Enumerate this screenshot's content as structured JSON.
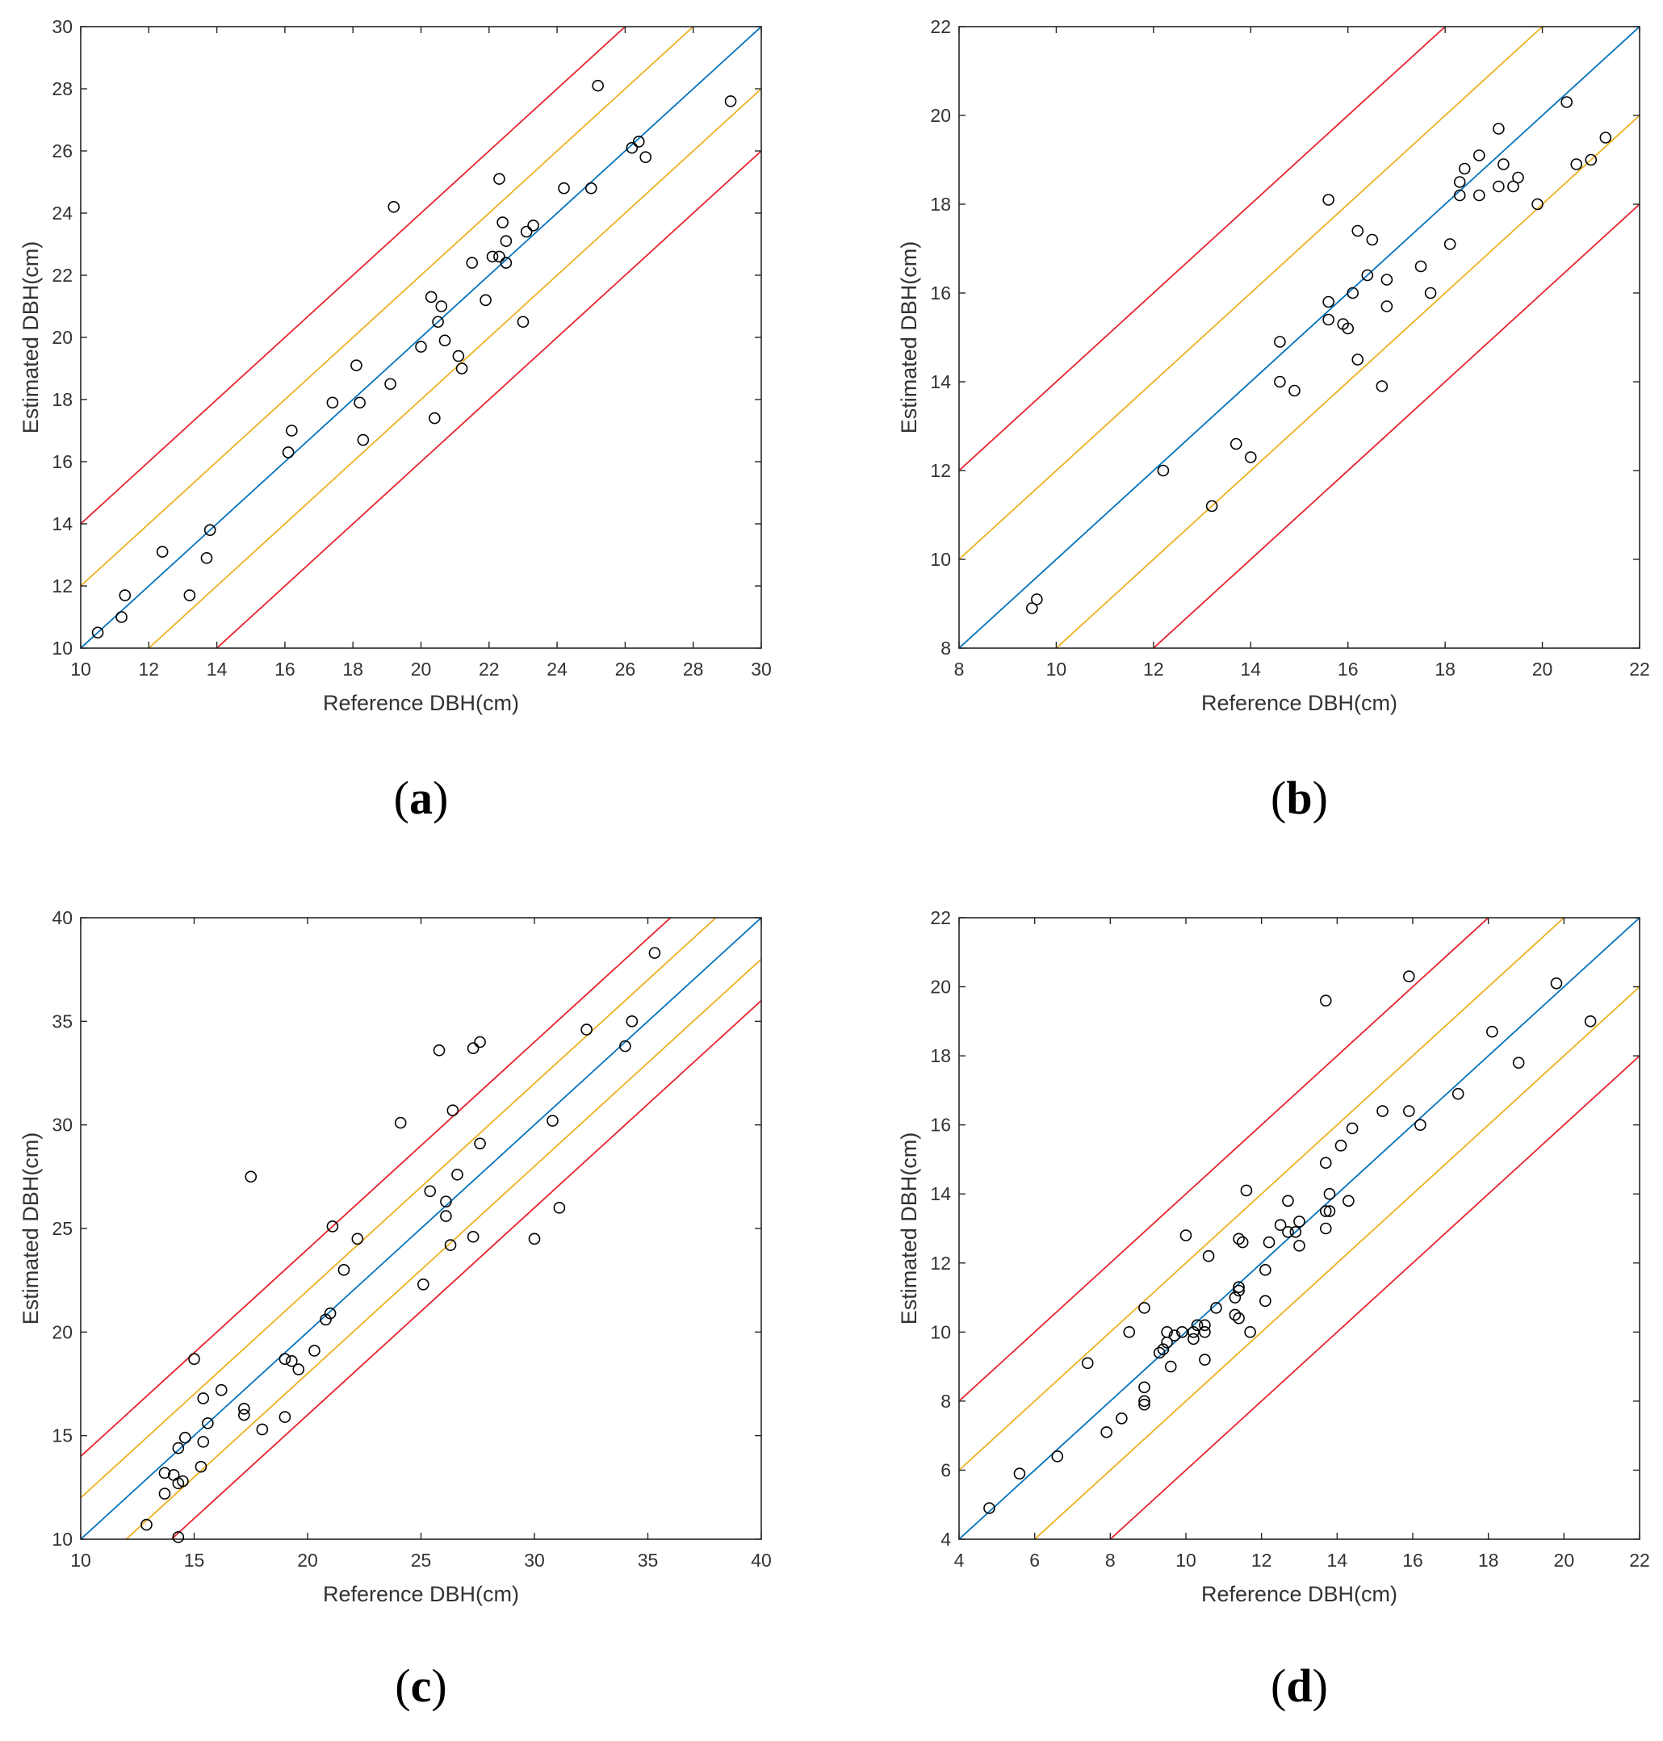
{
  "colors": {
    "identity": "#0072bd",
    "inner_band": "#edb120",
    "outer_band": "#e8222a",
    "marker": "#000000",
    "axes": "#262626"
  },
  "chart_data": [
    {
      "panel": "a",
      "panel_label": "a",
      "type": "scatter",
      "title": "",
      "xlabel": "Reference DBH(cm)",
      "ylabel": "Estimated DBH(cm)",
      "xlim": [
        10,
        30
      ],
      "ylim": [
        10,
        30
      ],
      "xticks": [
        10,
        12,
        14,
        16,
        18,
        20,
        22,
        24,
        26,
        28,
        30
      ],
      "yticks": [
        10,
        12,
        14,
        16,
        18,
        20,
        22,
        24,
        26,
        28,
        30
      ],
      "reference_lines": [
        {
          "name": "1:1",
          "offset": 0,
          "color": "identity"
        },
        {
          "name": "+2 cm",
          "offset": 2,
          "color": "inner_band"
        },
        {
          "name": "-2 cm",
          "offset": -2,
          "color": "inner_band"
        },
        {
          "name": "+4 cm",
          "offset": 4,
          "color": "outer_band"
        },
        {
          "name": "-4 cm",
          "offset": -4,
          "color": "outer_band"
        }
      ],
      "points": [
        [
          10.5,
          10.5
        ],
        [
          11.2,
          11.0
        ],
        [
          11.3,
          11.7
        ],
        [
          12.4,
          13.1
        ],
        [
          13.2,
          11.7
        ],
        [
          13.7,
          12.9
        ],
        [
          13.8,
          13.8
        ],
        [
          16.1,
          16.3
        ],
        [
          16.2,
          17.0
        ],
        [
          17.4,
          17.9
        ],
        [
          18.1,
          19.1
        ],
        [
          18.2,
          17.9
        ],
        [
          18.3,
          16.7
        ],
        [
          19.1,
          18.5
        ],
        [
          19.2,
          24.2
        ],
        [
          20.0,
          19.7
        ],
        [
          20.3,
          21.3
        ],
        [
          20.4,
          17.4
        ],
        [
          20.5,
          20.5
        ],
        [
          20.6,
          21.0
        ],
        [
          20.7,
          19.9
        ],
        [
          21.1,
          19.4
        ],
        [
          21.2,
          19.0
        ],
        [
          21.5,
          22.4
        ],
        [
          21.9,
          21.2
        ],
        [
          22.1,
          22.6
        ],
        [
          22.3,
          22.6
        ],
        [
          22.3,
          25.1
        ],
        [
          22.4,
          23.7
        ],
        [
          22.5,
          22.4
        ],
        [
          22.5,
          23.1
        ],
        [
          23.0,
          20.5
        ],
        [
          23.1,
          23.4
        ],
        [
          23.3,
          23.6
        ],
        [
          24.2,
          24.8
        ],
        [
          25.0,
          24.8
        ],
        [
          25.2,
          28.1
        ],
        [
          26.2,
          26.1
        ],
        [
          26.4,
          26.3
        ],
        [
          26.6,
          25.8
        ],
        [
          29.1,
          27.6
        ]
      ]
    },
    {
      "panel": "b",
      "panel_label": "b",
      "type": "scatter",
      "title": "",
      "xlabel": "Reference DBH(cm)",
      "ylabel": "Estimated DBH(cm)",
      "xlim": [
        8,
        22
      ],
      "ylim": [
        8,
        22
      ],
      "xticks": [
        8,
        10,
        12,
        14,
        16,
        18,
        20,
        22
      ],
      "yticks": [
        8,
        10,
        12,
        14,
        16,
        18,
        20,
        22
      ],
      "reference_lines": [
        {
          "name": "1:1",
          "offset": 0,
          "color": "identity"
        },
        {
          "name": "+2 cm",
          "offset": 2,
          "color": "inner_band"
        },
        {
          "name": "-2 cm",
          "offset": -2,
          "color": "inner_band"
        },
        {
          "name": "+4 cm",
          "offset": 4,
          "color": "outer_band"
        },
        {
          "name": "-4 cm",
          "offset": -4,
          "color": "outer_band"
        }
      ],
      "points": [
        [
          9.5,
          8.9
        ],
        [
          9.6,
          9.1
        ],
        [
          12.2,
          12.0
        ],
        [
          13.2,
          11.2
        ],
        [
          13.7,
          12.6
        ],
        [
          14.0,
          12.3
        ],
        [
          14.6,
          14.0
        ],
        [
          14.6,
          14.9
        ],
        [
          14.9,
          13.8
        ],
        [
          15.6,
          18.1
        ],
        [
          15.6,
          15.8
        ],
        [
          15.6,
          15.4
        ],
        [
          15.9,
          15.3
        ],
        [
          16.0,
          15.2
        ],
        [
          16.1,
          16.0
        ],
        [
          16.2,
          17.4
        ],
        [
          16.2,
          14.5
        ],
        [
          16.4,
          16.4
        ],
        [
          16.5,
          17.2
        ],
        [
          16.7,
          13.9
        ],
        [
          16.8,
          16.3
        ],
        [
          16.8,
          15.7
        ],
        [
          17.5,
          16.6
        ],
        [
          17.7,
          16.0
        ],
        [
          18.1,
          17.1
        ],
        [
          18.3,
          18.5
        ],
        [
          18.3,
          18.2
        ],
        [
          18.4,
          18.8
        ],
        [
          18.7,
          19.1
        ],
        [
          18.7,
          18.2
        ],
        [
          19.1,
          19.7
        ],
        [
          19.1,
          18.4
        ],
        [
          19.2,
          18.9
        ],
        [
          19.4,
          18.4
        ],
        [
          19.5,
          18.6
        ],
        [
          19.9,
          18.0
        ],
        [
          20.5,
          20.3
        ],
        [
          20.7,
          18.9
        ],
        [
          21.0,
          19.0
        ],
        [
          21.3,
          19.5
        ]
      ]
    },
    {
      "panel": "c",
      "panel_label": "c",
      "type": "scatter",
      "title": "",
      "xlabel": "Reference DBH(cm)",
      "ylabel": "Estimated DBH(cm)",
      "xlim": [
        10,
        40
      ],
      "ylim": [
        10,
        40
      ],
      "xticks": [
        10,
        15,
        20,
        25,
        30,
        35,
        40
      ],
      "yticks": [
        10,
        15,
        20,
        25,
        30,
        35,
        40
      ],
      "reference_lines": [
        {
          "name": "1:1",
          "offset": 0,
          "color": "identity"
        },
        {
          "name": "+2 cm",
          "offset": 2,
          "color": "inner_band"
        },
        {
          "name": "-2 cm",
          "offset": -2,
          "color": "inner_band"
        },
        {
          "name": "+4 cm",
          "offset": 4,
          "color": "outer_band"
        },
        {
          "name": "-4 cm",
          "offset": -4,
          "color": "outer_band"
        }
      ],
      "points": [
        [
          12.9,
          10.7
        ],
        [
          13.7,
          13.2
        ],
        [
          13.7,
          12.2
        ],
        [
          14.1,
          13.1
        ],
        [
          14.3,
          14.4
        ],
        [
          14.3,
          12.7
        ],
        [
          14.5,
          12.8
        ],
        [
          14.6,
          14.9
        ],
        [
          14.3,
          10.1
        ],
        [
          15.0,
          18.7
        ],
        [
          15.3,
          13.5
        ],
        [
          15.4,
          16.8
        ],
        [
          15.4,
          14.7
        ],
        [
          15.6,
          15.6
        ],
        [
          16.2,
          17.2
        ],
        [
          17.2,
          16.3
        ],
        [
          17.2,
          16.0
        ],
        [
          17.5,
          27.5
        ],
        [
          18.0,
          15.3
        ],
        [
          19.0,
          18.7
        ],
        [
          19.0,
          15.9
        ],
        [
          19.3,
          18.6
        ],
        [
          19.6,
          18.2
        ],
        [
          20.3,
          19.1
        ],
        [
          20.8,
          20.6
        ],
        [
          21.0,
          20.9
        ],
        [
          21.1,
          25.1
        ],
        [
          21.6,
          23.0
        ],
        [
          22.2,
          24.5
        ],
        [
          24.1,
          30.1
        ],
        [
          25.1,
          22.3
        ],
        [
          25.4,
          26.8
        ],
        [
          25.8,
          33.6
        ],
        [
          26.1,
          26.3
        ],
        [
          26.1,
          25.6
        ],
        [
          26.3,
          24.2
        ],
        [
          26.4,
          30.7
        ],
        [
          26.6,
          27.6
        ],
        [
          27.3,
          33.7
        ],
        [
          27.3,
          24.6
        ],
        [
          27.6,
          34.0
        ],
        [
          27.6,
          29.1
        ],
        [
          30.0,
          24.5
        ],
        [
          30.8,
          30.2
        ],
        [
          31.1,
          26.0
        ],
        [
          32.3,
          34.6
        ],
        [
          34.0,
          33.8
        ],
        [
          34.3,
          35.0
        ],
        [
          35.3,
          38.3
        ]
      ]
    },
    {
      "panel": "d",
      "panel_label": "d",
      "type": "scatter",
      "title": "",
      "xlabel": "Reference DBH(cm)",
      "ylabel": "Estimated DBH(cm)",
      "xlim": [
        4,
        22
      ],
      "ylim": [
        4,
        22
      ],
      "xticks": [
        4,
        6,
        8,
        10,
        12,
        14,
        16,
        18,
        20,
        22
      ],
      "yticks": [
        4,
        6,
        8,
        10,
        12,
        14,
        16,
        18,
        20,
        22
      ],
      "reference_lines": [
        {
          "name": "1:1",
          "offset": 0,
          "color": "identity"
        },
        {
          "name": "+2 cm",
          "offset": 2,
          "color": "inner_band"
        },
        {
          "name": "-2 cm",
          "offset": -2,
          "color": "inner_band"
        },
        {
          "name": "+4 cm",
          "offset": 4,
          "color": "outer_band"
        },
        {
          "name": "-4 cm",
          "offset": -4,
          "color": "outer_band"
        }
      ],
      "points": [
        [
          4.8,
          4.9
        ],
        [
          5.6,
          5.9
        ],
        [
          6.6,
          6.4
        ],
        [
          7.4,
          9.1
        ],
        [
          7.9,
          7.1
        ],
        [
          8.3,
          7.5
        ],
        [
          8.5,
          10.0
        ],
        [
          8.9,
          10.7
        ],
        [
          8.9,
          8.4
        ],
        [
          8.9,
          8.0
        ],
        [
          8.9,
          7.9
        ],
        [
          9.3,
          9.4
        ],
        [
          9.4,
          9.5
        ],
        [
          9.5,
          9.7
        ],
        [
          9.5,
          10.0
        ],
        [
          9.6,
          9.0
        ],
        [
          9.7,
          9.9
        ],
        [
          9.9,
          10.0
        ],
        [
          10.0,
          12.8
        ],
        [
          10.2,
          10.0
        ],
        [
          10.2,
          9.8
        ],
        [
          10.3,
          10.2
        ],
        [
          10.5,
          10.2
        ],
        [
          10.5,
          10.0
        ],
        [
          10.5,
          9.2
        ],
        [
          10.6,
          12.2
        ],
        [
          10.8,
          10.7
        ],
        [
          11.3,
          11.0
        ],
        [
          11.3,
          10.5
        ],
        [
          11.4,
          11.2
        ],
        [
          11.4,
          11.3
        ],
        [
          11.4,
          12.7
        ],
        [
          11.4,
          10.4
        ],
        [
          11.5,
          12.6
        ],
        [
          11.6,
          14.1
        ],
        [
          11.7,
          10.0
        ],
        [
          12.1,
          11.8
        ],
        [
          12.1,
          10.9
        ],
        [
          12.2,
          12.6
        ],
        [
          12.5,
          13.1
        ],
        [
          12.7,
          13.8
        ],
        [
          12.7,
          12.9
        ],
        [
          12.9,
          12.9
        ],
        [
          13.0,
          13.2
        ],
        [
          13.0,
          12.5
        ],
        [
          13.7,
          19.6
        ],
        [
          13.7,
          14.9
        ],
        [
          13.7,
          13.5
        ],
        [
          13.7,
          13.0
        ],
        [
          13.8,
          14.0
        ],
        [
          13.8,
          13.5
        ],
        [
          14.1,
          15.4
        ],
        [
          14.3,
          13.8
        ],
        [
          14.4,
          15.9
        ],
        [
          15.2,
          16.4
        ],
        [
          15.9,
          20.3
        ],
        [
          15.9,
          16.4
        ],
        [
          16.2,
          16.0
        ],
        [
          17.2,
          16.9
        ],
        [
          18.1,
          18.7
        ],
        [
          18.8,
          17.8
        ],
        [
          19.8,
          20.1
        ],
        [
          20.7,
          19.0
        ]
      ]
    }
  ]
}
